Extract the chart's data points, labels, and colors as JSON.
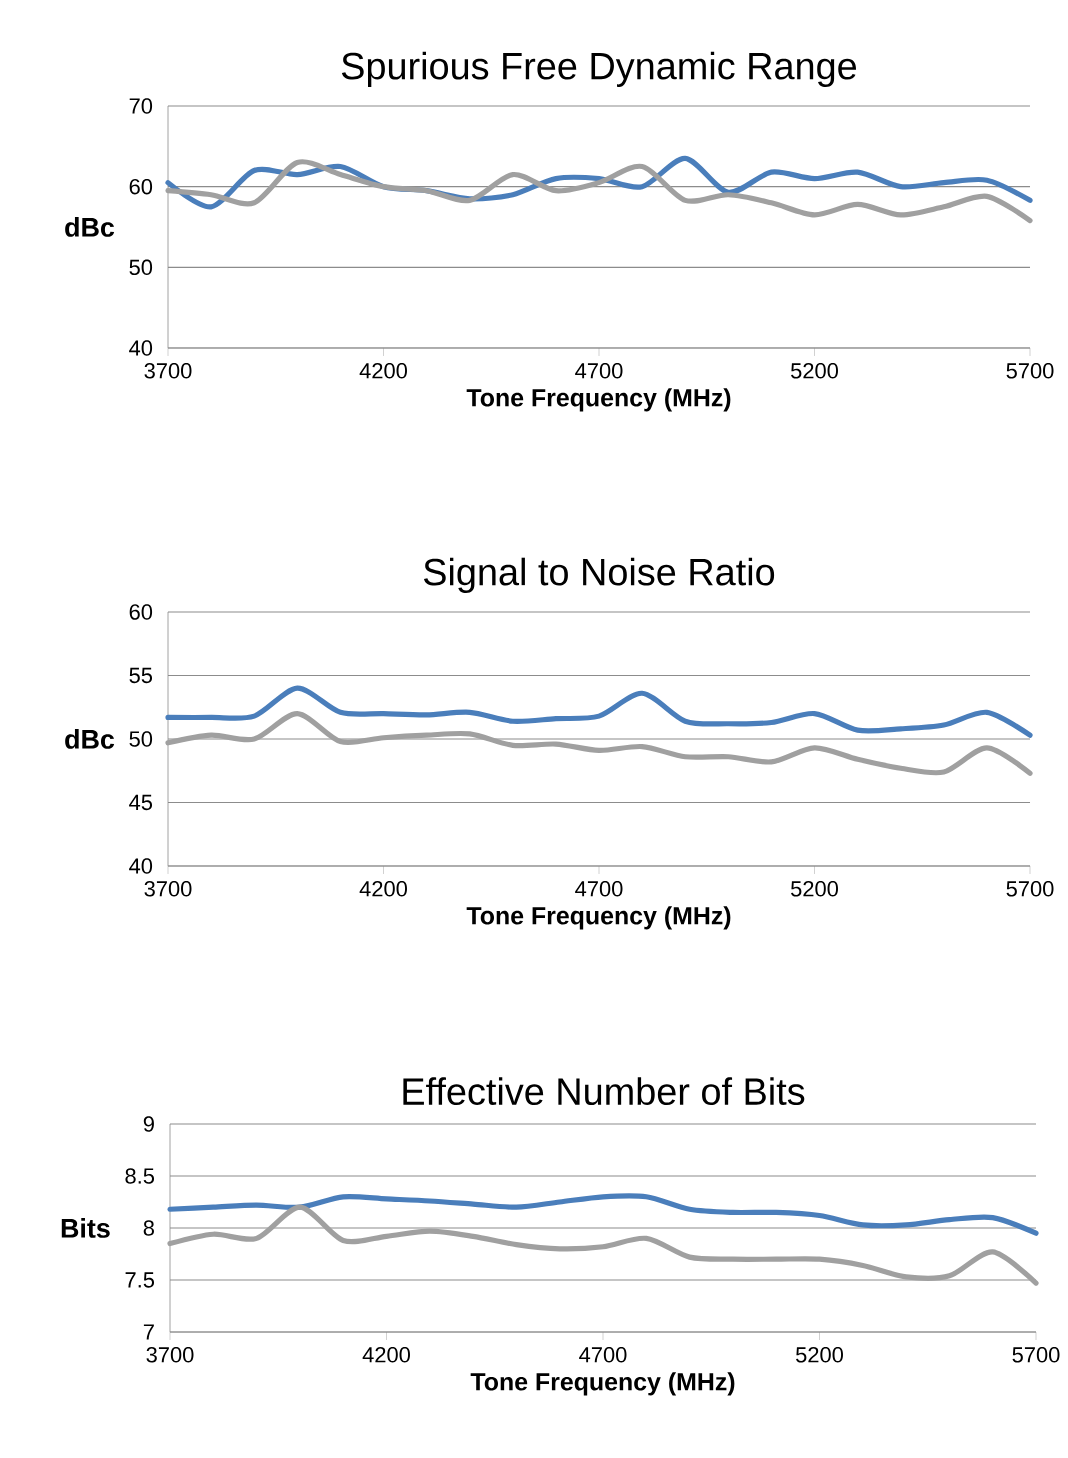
{
  "chart_data": [
    {
      "type": "line",
      "title": "Spurious Free Dynamic Range",
      "xlabel": "Tone Frequency (MHz)",
      "ylabel": "dBc",
      "x": [
        3700,
        3800,
        3900,
        4000,
        4100,
        4200,
        4300,
        4400,
        4500,
        4600,
        4700,
        4800,
        4900,
        5000,
        5100,
        5200,
        5300,
        5400,
        5500,
        5600,
        5700
      ],
      "series": [
        {
          "color": "#4a7ebb",
          "values": [
            60.5,
            57.5,
            62,
            61.5,
            62.5,
            60,
            59.5,
            58.5,
            59,
            61,
            61,
            60,
            63.5,
            59.3,
            61.8,
            61,
            61.8,
            60,
            60.5,
            60.8,
            58.3
          ]
        },
        {
          "color": "#a0a0a0",
          "values": [
            59.5,
            59,
            58,
            63,
            61.5,
            60,
            59.5,
            58.3,
            61.5,
            59.5,
            60.5,
            62.5,
            58.3,
            59,
            58,
            56.5,
            57.8,
            56.5,
            57.5,
            58.8,
            55.8
          ]
        }
      ],
      "xlim": [
        3700,
        5700
      ],
      "ylim": [
        40,
        70
      ],
      "xticks": [
        3700,
        4200,
        4700,
        5200,
        5700
      ],
      "yticks": [
        40,
        50,
        60,
        70
      ],
      "grid": "y"
    },
    {
      "type": "line",
      "title": "Signal to Noise Ratio",
      "xlabel": "Tone Frequency (MHz)",
      "ylabel": "dBc",
      "x": [
        3700,
        3800,
        3900,
        4000,
        4100,
        4200,
        4300,
        4400,
        4500,
        4600,
        4700,
        4800,
        4900,
        5000,
        5100,
        5200,
        5300,
        5400,
        5500,
        5600,
        5700
      ],
      "series": [
        {
          "color": "#4a7ebb",
          "values": [
            51.7,
            51.7,
            51.8,
            54,
            52.1,
            52,
            51.9,
            52.1,
            51.4,
            51.6,
            51.8,
            53.6,
            51.4,
            51.2,
            51.3,
            52,
            50.7,
            50.8,
            51.1,
            52.1,
            50.3
          ]
        },
        {
          "color": "#a0a0a0",
          "values": [
            49.7,
            50.3,
            50,
            52,
            49.8,
            50.1,
            50.3,
            50.4,
            49.5,
            49.6,
            49.1,
            49.4,
            48.6,
            48.6,
            48.2,
            49.3,
            48.4,
            47.7,
            47.4,
            49.3,
            47.3
          ]
        }
      ],
      "xlim": [
        3700,
        5700
      ],
      "ylim": [
        40,
        60
      ],
      "xticks": [
        3700,
        4200,
        4700,
        5200,
        5700
      ],
      "yticks": [
        40,
        45,
        50,
        55,
        60
      ],
      "grid": "y"
    },
    {
      "type": "line",
      "title": "Effective Number of Bits",
      "xlabel": "Tone Frequency (MHz)",
      "ylabel": "Bits",
      "x": [
        3700,
        3800,
        3900,
        4000,
        4100,
        4200,
        4300,
        4400,
        4500,
        4600,
        4700,
        4800,
        4900,
        5000,
        5100,
        5200,
        5300,
        5400,
        5500,
        5600,
        5700
      ],
      "series": [
        {
          "color": "#4a7ebb",
          "values": [
            8.18,
            8.2,
            8.22,
            8.2,
            8.3,
            8.28,
            8.26,
            8.23,
            8.2,
            8.25,
            8.3,
            8.3,
            8.18,
            8.15,
            8.15,
            8.12,
            8.03,
            8.03,
            8.08,
            8.1,
            7.95
          ]
        },
        {
          "color": "#a0a0a0",
          "values": [
            7.85,
            7.94,
            7.9,
            8.2,
            7.88,
            7.92,
            7.97,
            7.92,
            7.84,
            7.8,
            7.82,
            7.9,
            7.72,
            7.7,
            7.7,
            7.7,
            7.64,
            7.53,
            7.54,
            7.77,
            7.47
          ]
        }
      ],
      "xlim": [
        3700,
        5700
      ],
      "ylim": [
        7,
        9
      ],
      "xticks": [
        3700,
        4200,
        4700,
        5200,
        5700
      ],
      "yticks": [
        7,
        7.5,
        8,
        8.5,
        9
      ],
      "grid": "y"
    }
  ]
}
